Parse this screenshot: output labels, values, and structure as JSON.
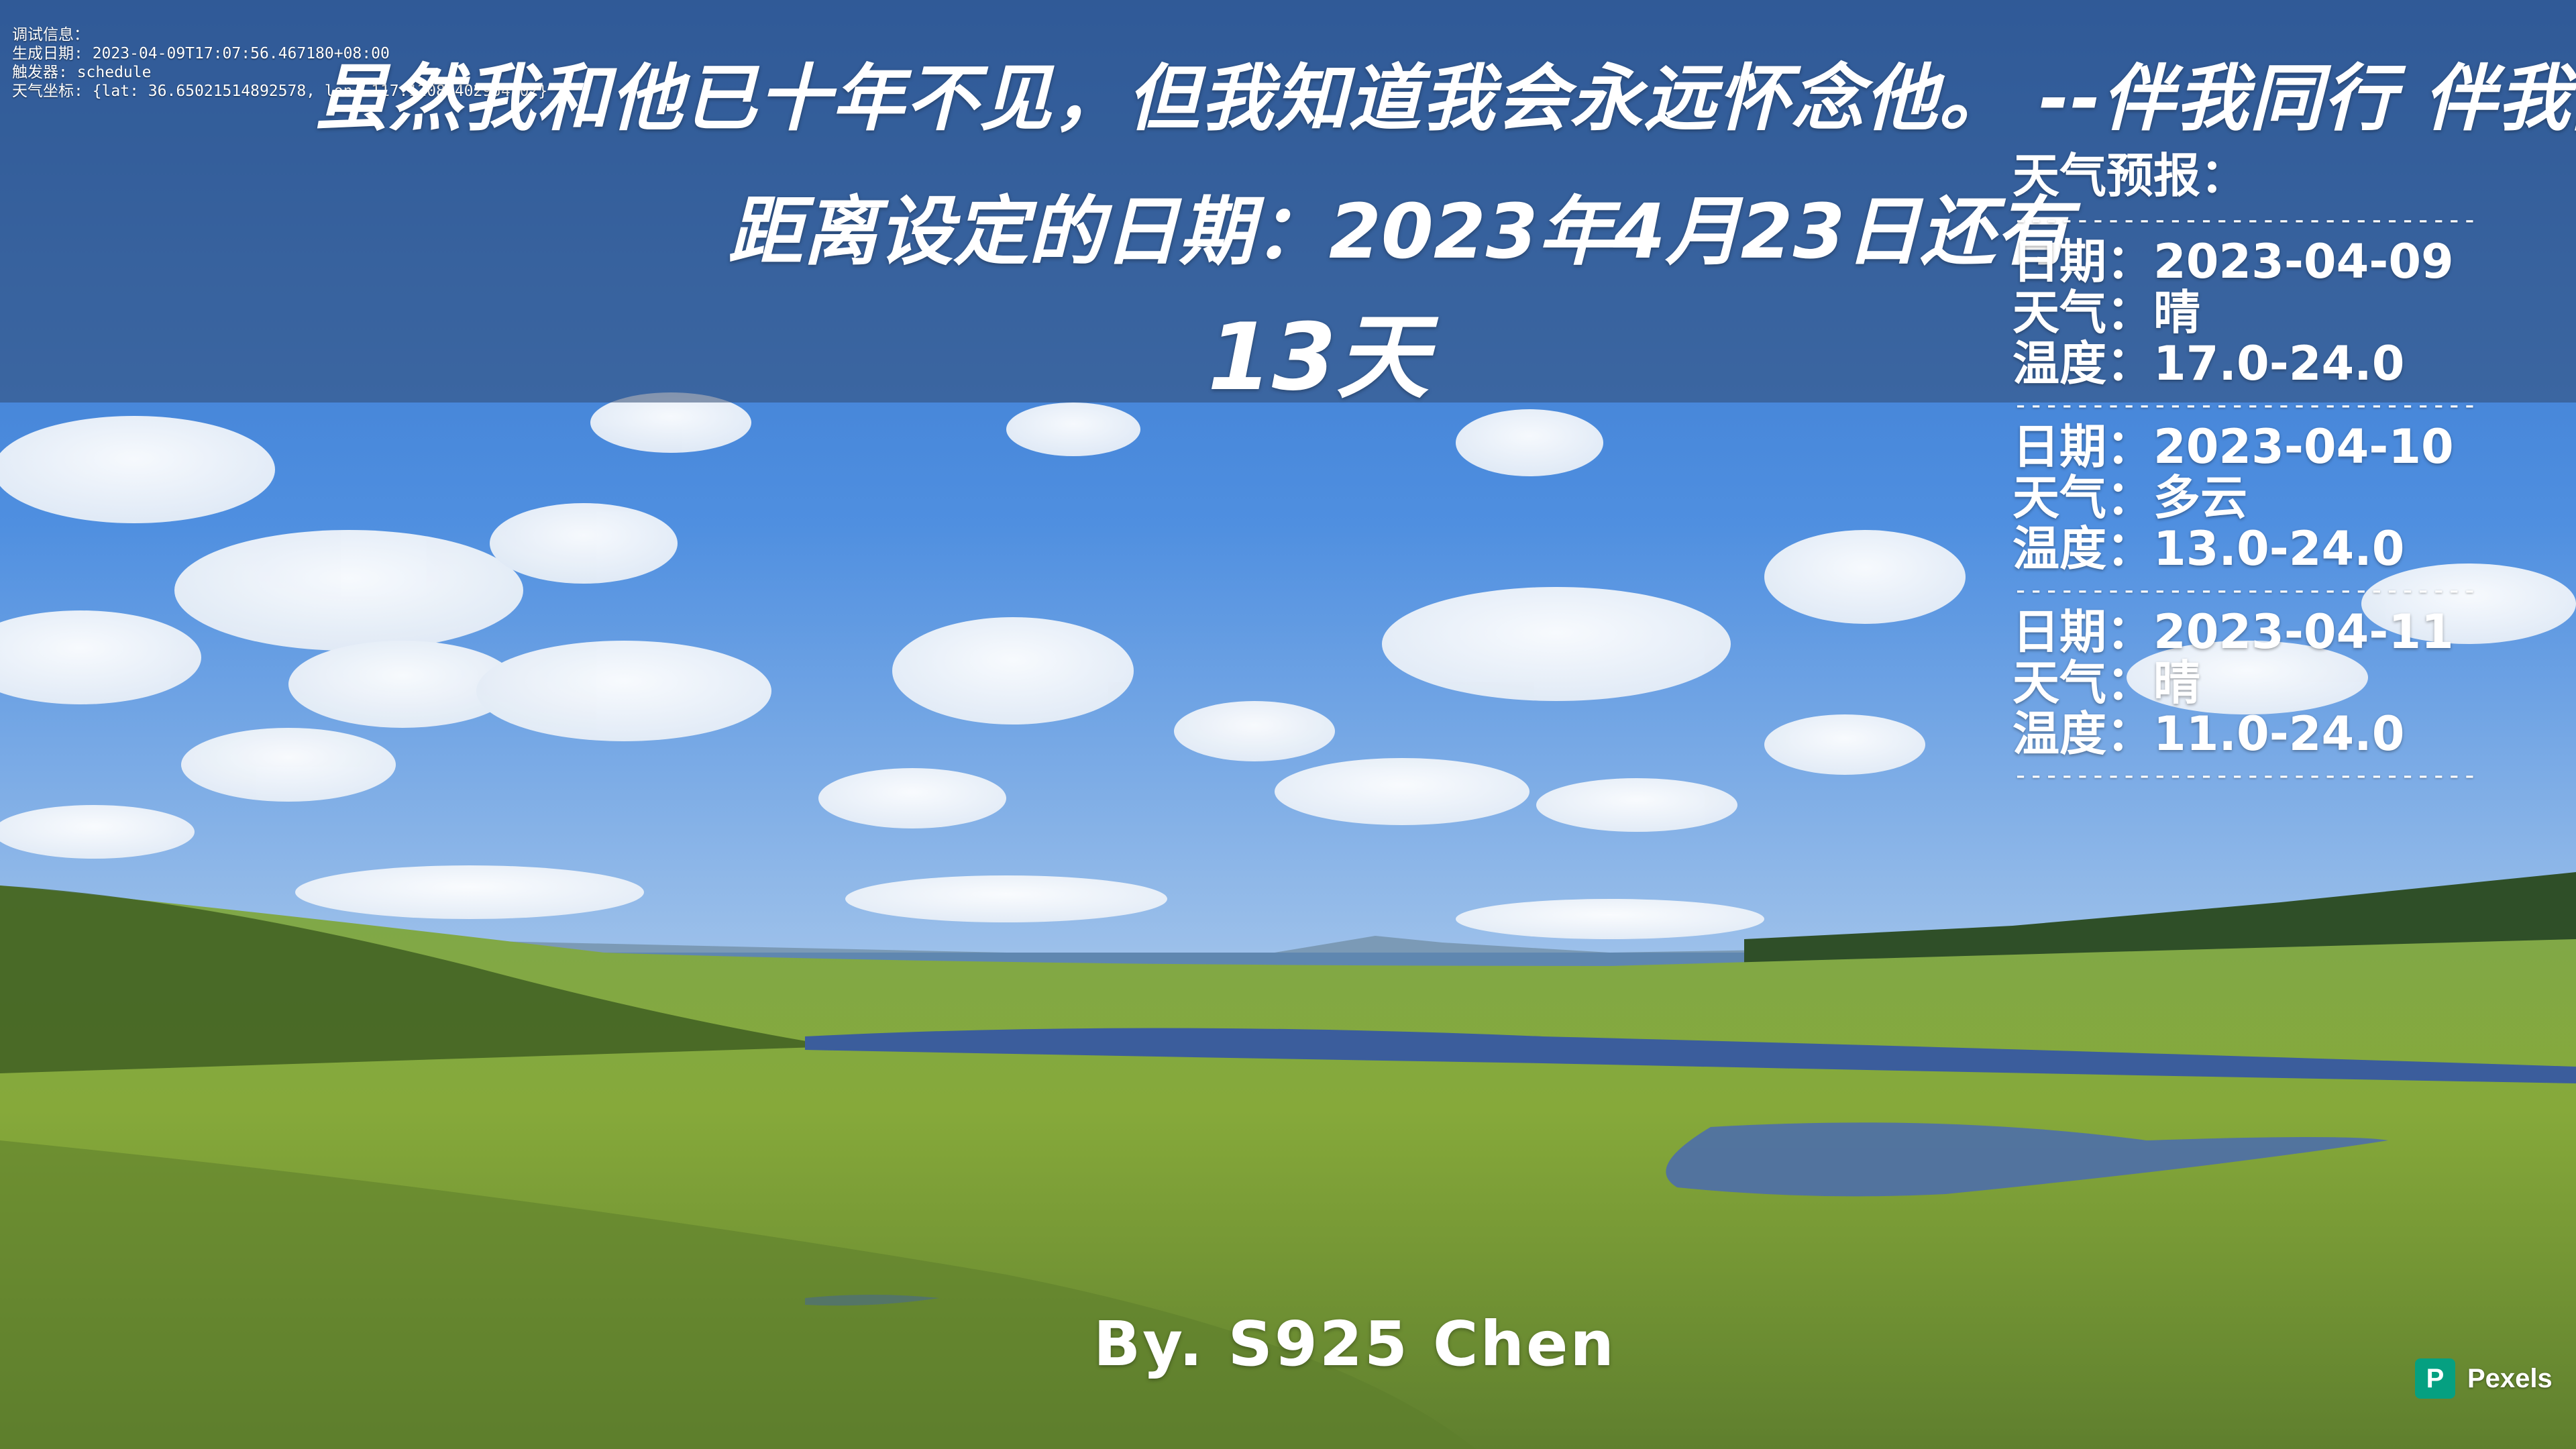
{
  "debug": {
    "lines": [
      "调试信息：",
      "生成日期: 2023-04-09T17:07:56.467180+08:00",
      "触发器: schedule",
      "天气坐标: {lat: 36.65021514892578, lon: 117.12087402954102}"
    ]
  },
  "header": {
    "quote": "虽然我和他已十年不见，但我知道我会永远怀念他。 --伴我同行 伴我同行",
    "countdown_label": "距离设定的日期：2023年4月23日还有",
    "countdown_days": "13天"
  },
  "weather": {
    "title": "天气预报：",
    "divider": "------------------------------",
    "days": [
      {
        "date": "日期：2023-04-09",
        "condition": "天气：晴",
        "temp": "温度：17.0-24.0"
      },
      {
        "date": "日期：2023-04-10",
        "condition": "天气：多云",
        "temp": "温度：13.0-24.0"
      },
      {
        "date": "日期：2023-04-11",
        "condition": "天气：晴",
        "temp": "温度：11.0-24.0"
      }
    ]
  },
  "footer": {
    "byline": "By. S925 Chen",
    "credit": "Pexels",
    "credit_logo": "P"
  },
  "colors": {
    "sky": "#3f7fd6",
    "banner": "rgba(50,75,115,0.55)",
    "grass": "#7fa83a",
    "lake": "#3b5d9c",
    "text": "#ffffff",
    "pexels": "#05a081"
  },
  "icons": {
    "pexels_logo": "pexels-logo-icon"
  }
}
